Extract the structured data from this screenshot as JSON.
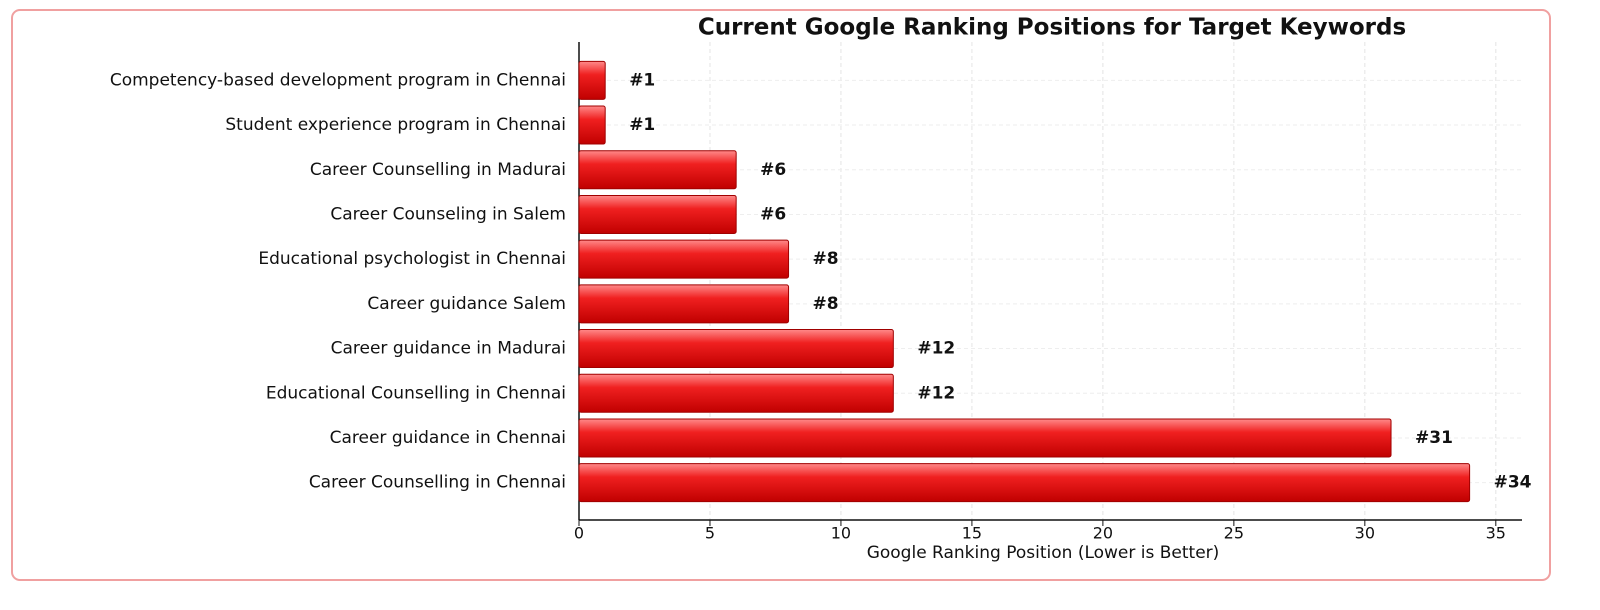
{
  "chart_data": {
    "type": "barh",
    "title": "Current Google Ranking Positions for Target Keywords",
    "x_label": "Google Ranking Position (Lower is Better)",
    "categories": [
      "Competency-based development program in Chennai",
      "Student experience program in Chennai",
      "Career Counselling in Madurai",
      "Career Counseling in Salem",
      "Educational psychologist in Chennai",
      "Career guidance Salem",
      "Career guidance in Madurai",
      "Educational Counselling in Chennai",
      "Career guidance in Chennai",
      "Career Counselling in Chennai"
    ],
    "values": [
      1,
      1,
      6,
      6,
      8,
      8,
      12,
      12,
      31,
      34
    ],
    "value_labels": [
      "#1",
      "#1",
      "#6",
      "#6",
      "#8",
      "#8",
      "#12",
      "#12",
      "#31",
      "#34"
    ],
    "color": "#e00000",
    "xlim": [
      0,
      36
    ],
    "xticks": [
      0,
      5,
      10,
      15,
      20,
      25,
      30,
      35
    ],
    "grid": true
  }
}
